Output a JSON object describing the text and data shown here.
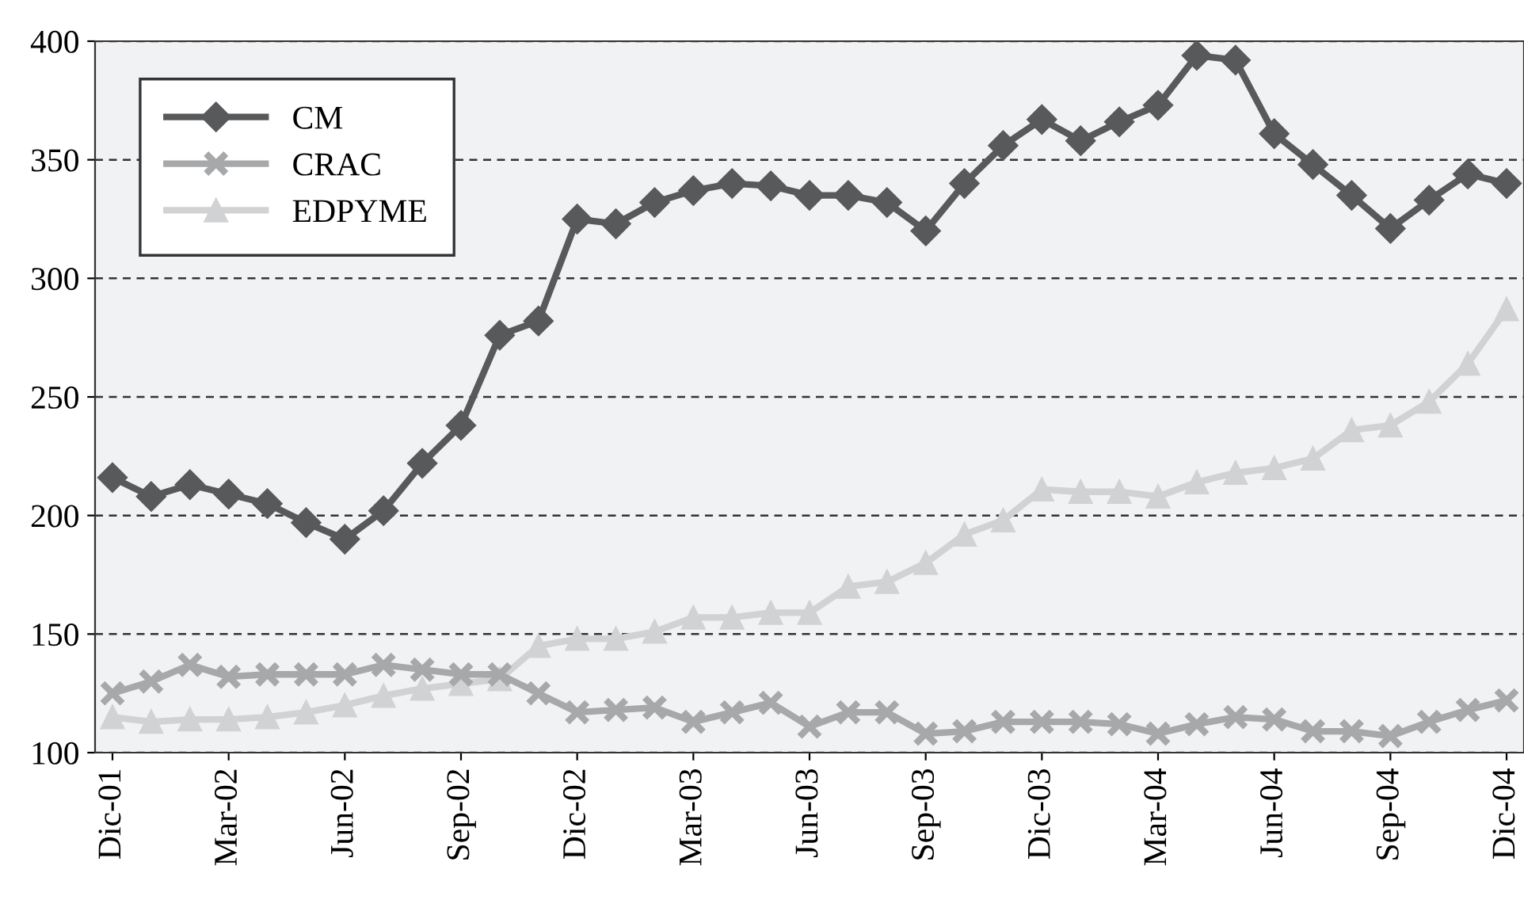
{
  "chart_data": {
    "type": "line",
    "categories": [
      "Dic-01",
      null,
      null,
      "Mar-02",
      null,
      null,
      "Jun-02",
      null,
      null,
      "Sep-02",
      null,
      null,
      "Dic-02",
      null,
      null,
      "Mar-03",
      null,
      null,
      "Jun-03",
      null,
      null,
      "Sep-03",
      null,
      null,
      "Dic-03",
      null,
      null,
      "Mar-04",
      null,
      null,
      "Jun-04",
      null,
      null,
      "Sep-04",
      null,
      null,
      "Dic-04"
    ],
    "series": [
      {
        "name": "CM",
        "color": "#58595b",
        "marker": "diamond",
        "values": [
          216,
          208,
          213,
          209,
          205,
          197,
          190,
          202,
          222,
          238,
          276,
          282,
          325,
          323,
          332,
          337,
          340,
          339,
          335,
          335,
          332,
          320,
          340,
          356,
          367,
          358,
          366,
          373,
          394,
          392,
          361,
          348,
          335,
          321,
          333,
          344,
          340
        ]
      },
      {
        "name": "CRAC",
        "color": "#a7a8aa",
        "marker": "cross",
        "values": [
          125,
          130,
          137,
          132,
          133,
          133,
          133,
          137,
          135,
          133,
          133,
          125,
          117,
          118,
          119,
          113,
          117,
          121,
          111,
          117,
          117,
          108,
          109,
          113,
          113,
          113,
          112,
          108,
          112,
          115,
          114,
          109,
          109,
          107,
          113,
          118,
          122
        ]
      },
      {
        "name": "EDPYME",
        "color": "#d1d2d4",
        "marker": "triangle",
        "values": [
          115,
          113,
          114,
          114,
          115,
          117,
          120,
          124,
          127,
          129,
          131,
          145,
          148,
          148,
          151,
          157,
          157,
          159,
          159,
          170,
          172,
          180,
          192,
          198,
          211,
          210,
          210,
          208,
          214,
          218,
          220,
          224,
          236,
          238,
          248,
          264,
          287
        ]
      }
    ],
    "ylim": [
      100,
      400
    ],
    "yticks": [
      100,
      150,
      200,
      250,
      300,
      350,
      400
    ],
    "grid": "y",
    "line_style": "solid",
    "legend": "top left"
  }
}
